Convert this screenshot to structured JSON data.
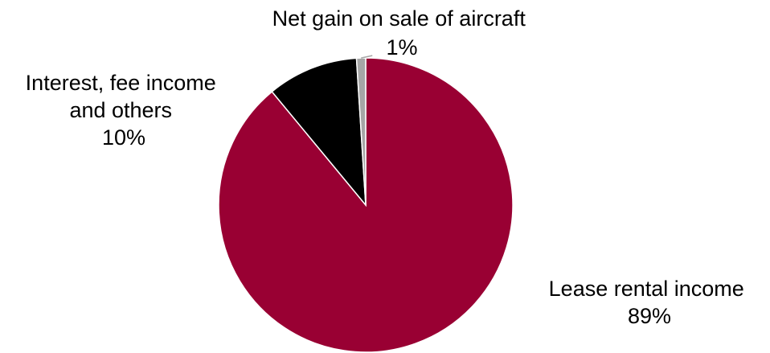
{
  "chart_data": {
    "type": "pie",
    "slices": [
      {
        "label_lines": [
          "Lease rental income"
        ],
        "percent_label": "89%",
        "value": 89,
        "color": "#990033"
      },
      {
        "label_lines": [
          "Interest, fee income",
          "and others"
        ],
        "percent_label": "10%",
        "value": 10,
        "color": "#000000"
      },
      {
        "label_lines": [
          "Net gain on sale of aircraft"
        ],
        "percent_label": "1%",
        "value": 1,
        "color": "#a6a6a6"
      }
    ],
    "start_angle_deg": 0,
    "direction": "clockwise",
    "slice_border_color": "#ffffff"
  }
}
